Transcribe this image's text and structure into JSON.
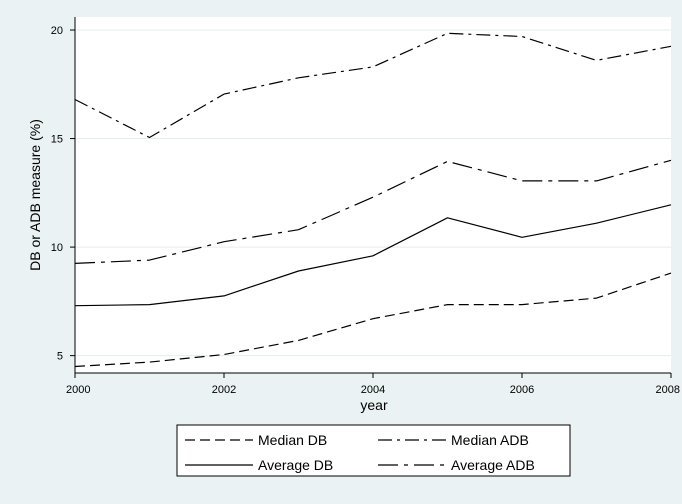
{
  "chart_data": {
    "type": "line",
    "title": "",
    "xlabel": "year",
    "ylabel": "DB or ADB measure (%)",
    "x": [
      2000,
      2001,
      2002,
      2003,
      2004,
      2005,
      2006,
      2007,
      2008
    ],
    "xticks": [
      2000,
      2002,
      2004,
      2006,
      2008
    ],
    "yticks": [
      5,
      10,
      15,
      20
    ],
    "xlim": [
      2000,
      2008
    ],
    "ylim": [
      4.2,
      20.6
    ],
    "grid": "horizontal",
    "legend_position": "bottom",
    "series": [
      {
        "name": "Median DB",
        "dash": "dash",
        "values": [
          4.5,
          4.7,
          5.05,
          5.7,
          6.7,
          7.35,
          7.35,
          7.65,
          8.8
        ]
      },
      {
        "name": "Median ADB",
        "dash": "dashdot",
        "values": [
          16.8,
          15.05,
          17.05,
          17.8,
          18.3,
          19.85,
          19.7,
          18.6,
          19.25
        ]
      },
      {
        "name": "Average DB",
        "dash": "solid",
        "values": [
          7.3,
          7.35,
          7.75,
          8.9,
          9.6,
          11.35,
          10.45,
          11.1,
          11.95
        ]
      },
      {
        "name": "Average ADB",
        "dash": "longdashdot",
        "values": [
          9.25,
          9.4,
          10.25,
          10.8,
          12.3,
          13.95,
          13.05,
          13.05,
          14.0
        ]
      }
    ]
  }
}
